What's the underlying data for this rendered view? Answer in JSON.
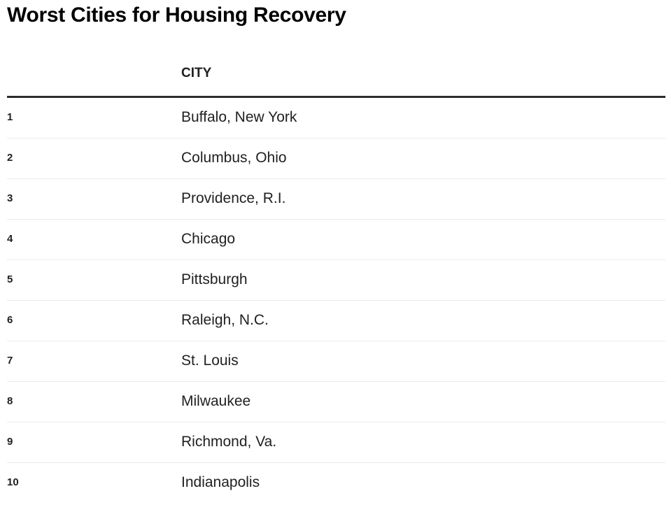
{
  "chart_data": {
    "type": "table",
    "title": "Worst Cities for Housing Recovery",
    "columns": [
      {
        "label": ""
      },
      {
        "label": "CITY"
      }
    ],
    "rows": [
      {
        "rank": "1",
        "city": "Buffalo, New York"
      },
      {
        "rank": "2",
        "city": "Columbus, Ohio"
      },
      {
        "rank": "3",
        "city": "Providence, R.I."
      },
      {
        "rank": "4",
        "city": "Chicago"
      },
      {
        "rank": "5",
        "city": "Pittsburgh"
      },
      {
        "rank": "6",
        "city": "Raleigh, N.C."
      },
      {
        "rank": "7",
        "city": "St. Louis"
      },
      {
        "rank": "8",
        "city": "Milwaukee"
      },
      {
        "rank": "9",
        "city": "Richmond, Va."
      },
      {
        "rank": "10",
        "city": "Indianapolis"
      }
    ],
    "layout": {
      "header_rule": true,
      "row_dividers": true
    }
  },
  "colors": {
    "title_text": "#000000",
    "body_text": "#212121",
    "header_rule": "#2b2b2b",
    "row_divider": "#ebebeb",
    "background": "#ffffff"
  }
}
